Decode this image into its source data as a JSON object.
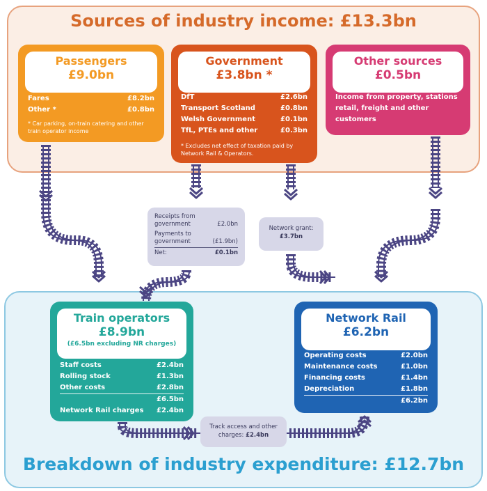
{
  "top_title": "Sources of industry income: £13.3bn",
  "bottom_title": "Breakdown of industry expenditure: £12.7bn",
  "colors": {
    "passengers": "#f39a23",
    "government": "#d8541d",
    "other": "#d63b73",
    "train_operators": "#23a79a",
    "network_rail": "#1f64b3",
    "track": "#4b4583"
  },
  "passengers": {
    "name": "Passengers",
    "amount": "£9.0bn",
    "rows": [
      {
        "label": "Fares",
        "value": "£8.2bn"
      },
      {
        "label": "Other *",
        "value": "£0.8bn"
      }
    ],
    "note": "* Car parking, on-train catering and other train operator income"
  },
  "government": {
    "name": "Government",
    "amount": "£3.8bn *",
    "rows": [
      {
        "label": "DfT",
        "value": "£2.6bn"
      },
      {
        "label": "Transport Scotland",
        "value": "£0.8bn"
      },
      {
        "label": "Welsh Government",
        "value": "£0.1bn"
      },
      {
        "label": "TfL, PTEs and other",
        "value": "£0.3bn"
      }
    ],
    "note": "* Excludes net effect of taxation paid by Network Rail & Operators."
  },
  "other_sources": {
    "name": "Other sources",
    "amount": "£0.5bn",
    "text": "Income from property, stations retail, freight and other customers"
  },
  "receipts": {
    "r1_label": "Receipts from government",
    "r1_value": "£2.0bn",
    "r2_label": "Payments to government",
    "r2_value": "(£1.9bn)",
    "net_label": "Net:",
    "net_value": "£0.1bn"
  },
  "network_grant": {
    "label": "Network grant:",
    "value": "£3.7bn"
  },
  "track_access": {
    "label": "Track access and other charges:",
    "value": "£2.4bn"
  },
  "train_operators": {
    "name": "Train operators",
    "amount": "£8.9bn",
    "sub": "(£6.5bn excluding NR charges)",
    "rows": [
      {
        "label": "Staff costs",
        "value": "£2.4bn"
      },
      {
        "label": "Rolling stock",
        "value": "£1.3bn"
      },
      {
        "label": "Other costs",
        "value": "£2.8bn"
      }
    ],
    "subtotal": "£6.5bn",
    "nr_label": "Network Rail charges",
    "nr_value": "£2.4bn"
  },
  "network_rail": {
    "name": "Network Rail",
    "amount": "£6.2bn",
    "rows": [
      {
        "label": "Operating costs",
        "value": "£2.0bn"
      },
      {
        "label": "Maintenance costs",
        "value": "£1.0bn"
      },
      {
        "label": "Financing costs",
        "value": "£1.4bn"
      },
      {
        "label": "Depreciation",
        "value": "£1.8bn"
      }
    ],
    "total": "£6.2bn"
  }
}
